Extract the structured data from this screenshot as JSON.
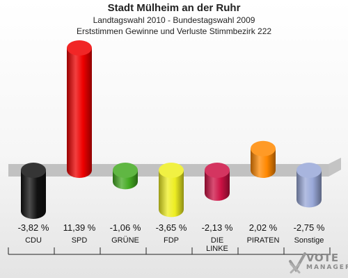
{
  "header": {
    "title": "Stadt Mülheim an der Ruhr",
    "subtitle1": "Landtagswahl 2010 - Bundestagswahl 2009",
    "subtitle2": "Erststimmen Gewinne und Verluste Stimmbezirk 222"
  },
  "chart_data": {
    "type": "bar",
    "title": "Stadt Mülheim an der Ruhr",
    "subtitle": "Landtagswahl 2010 - Bundestagswahl 2009 / Erststimmen Gewinne und Verluste Stimmbezirk 222",
    "categories": [
      "CDU",
      "SPD",
      "GRÜNE",
      "FDP",
      "DIE LINKE",
      "PIRATEN",
      "Sonstige"
    ],
    "values": [
      -3.82,
      11.39,
      -1.06,
      -3.65,
      -2.13,
      2.02,
      -2.75
    ],
    "value_labels": [
      "-3,82 %",
      "11,39 %",
      "-1,06 %",
      "-3,65 %",
      "-2,13 %",
      "2,02 %",
      "-2,75 %"
    ],
    "colors": [
      "#111111",
      "#ee0000",
      "#44aa22",
      "#eeee22",
      "#cc1144",
      "#ff8800",
      "#99a8d8"
    ],
    "ylim": [
      -12,
      12
    ],
    "grid": false
  },
  "logo": {
    "text": "VOTE",
    "subtext": "MANAGER",
    "icon": "checkmark-x-icon"
  }
}
